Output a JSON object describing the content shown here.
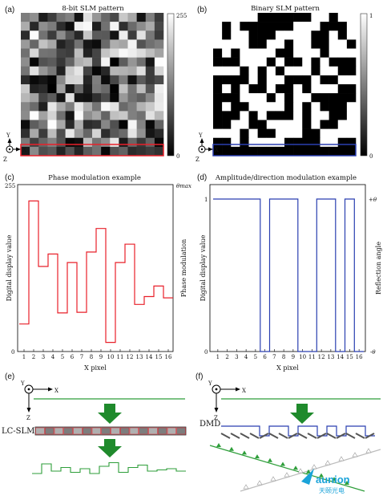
{
  "panels": {
    "a": {
      "tag": "(a)",
      "title": "8-bit SLM pattern",
      "cbar_max": "255",
      "cbar_min": "0"
    },
    "b": {
      "tag": "(b)",
      "title": "Binary SLM pattern",
      "cbar_max": "1",
      "cbar_min": "0"
    },
    "c": {
      "tag": "(c)",
      "title": "Phase modulation example",
      "ylabel": "Digital display value",
      "y2label": "Phase modulation",
      "xlabel": "X pixel",
      "ytop": "255",
      "ybot": "0",
      "y2top": "θmax"
    },
    "d": {
      "tag": "(d)",
      "title": "Amplitude/direction modulation example",
      "ylabel": "Digital display value",
      "y2label": "Reflection angle",
      "xlabel": "X pixel",
      "ytop": "1",
      "ybot": "0",
      "y2top": "+θ",
      "y2bot": "-θ"
    },
    "e": {
      "tag": "(e)",
      "device": "LC-SLM"
    },
    "f": {
      "tag": "(f)",
      "device": "DMD"
    }
  },
  "axes_labels": {
    "y": "Y",
    "x": "X",
    "z": "Z"
  },
  "watermark": {
    "brand": "aunion",
    "sub": "天颐光电"
  },
  "colors": {
    "phase": "#e8202a",
    "binary": "#2a3fb0",
    "beam": "#2e9e3a",
    "arrow": "#1f8a2c"
  },
  "chart_data": [
    {
      "type": "heatmap",
      "title": "8-bit SLM pattern",
      "range": [
        0,
        255
      ],
      "grid": [
        16,
        16
      ]
    },
    {
      "type": "heatmap",
      "title": "Binary SLM pattern",
      "range": [
        0,
        1
      ],
      "grid": [
        16,
        16
      ]
    },
    {
      "type": "line",
      "title": "Phase modulation example",
      "xlabel": "X pixel",
      "ylabel": "Digital display value",
      "x": [
        1,
        2,
        3,
        4,
        5,
        6,
        7,
        8,
        9,
        10,
        11,
        12,
        13,
        14,
        15,
        16
      ],
      "values": [
        42,
        230,
        130,
        149,
        59,
        136,
        60,
        152,
        188,
        14,
        136,
        164,
        72,
        84,
        100,
        82
      ],
      "ylim": [
        0,
        255
      ]
    },
    {
      "type": "line",
      "title": "Amplitude/direction modulation example",
      "xlabel": "X pixel",
      "ylabel": "Digital display value",
      "x": [
        1,
        2,
        3,
        4,
        5,
        6,
        7,
        8,
        9,
        10,
        11,
        12,
        13,
        14,
        15,
        16
      ],
      "values": [
        1,
        1,
        1,
        1,
        1,
        0,
        1,
        1,
        1,
        0,
        0,
        1,
        1,
        0,
        1,
        0
      ],
      "ylim": [
        0,
        1
      ]
    }
  ]
}
